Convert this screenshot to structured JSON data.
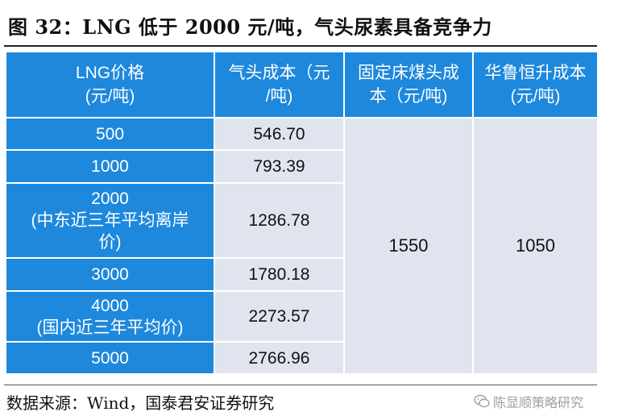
{
  "title": "图 32：LNG 低于 2000 元/吨，气头尿素具备竞争力",
  "table": {
    "headers": [
      [
        "LNG价格",
        "(元/吨)"
      ],
      [
        "气头成本（元",
        "/吨)"
      ],
      [
        "固定床煤头成",
        "本（元/吨)"
      ],
      [
        "华鲁恒升成本",
        "(元/吨)"
      ]
    ],
    "rows": [
      {
        "lng": [
          "500"
        ],
        "gas_cost": "546.70"
      },
      {
        "lng": [
          "1000"
        ],
        "gas_cost": "793.39"
      },
      {
        "lng": [
          "2000",
          "(中东近三年平均离岸",
          "价)"
        ],
        "gas_cost": "1286.78"
      },
      {
        "lng": [
          "3000"
        ],
        "gas_cost": "1780.18"
      },
      {
        "lng": [
          "4000",
          "(国内近三年平均价)"
        ],
        "gas_cost": "2273.57"
      },
      {
        "lng": [
          "5000"
        ],
        "gas_cost": "2766.96"
      }
    ],
    "coal_fixed_bed_cost": "1550",
    "hualu_cost": "1050"
  },
  "source": "数据来源：Wind，国泰君安证券研究",
  "watermark": {
    "icon": "wechat-icon",
    "text": "陈显顺策略研究"
  },
  "colors": {
    "header_bg": "#1e88dc",
    "cell_bg": "#dfe4ef"
  }
}
